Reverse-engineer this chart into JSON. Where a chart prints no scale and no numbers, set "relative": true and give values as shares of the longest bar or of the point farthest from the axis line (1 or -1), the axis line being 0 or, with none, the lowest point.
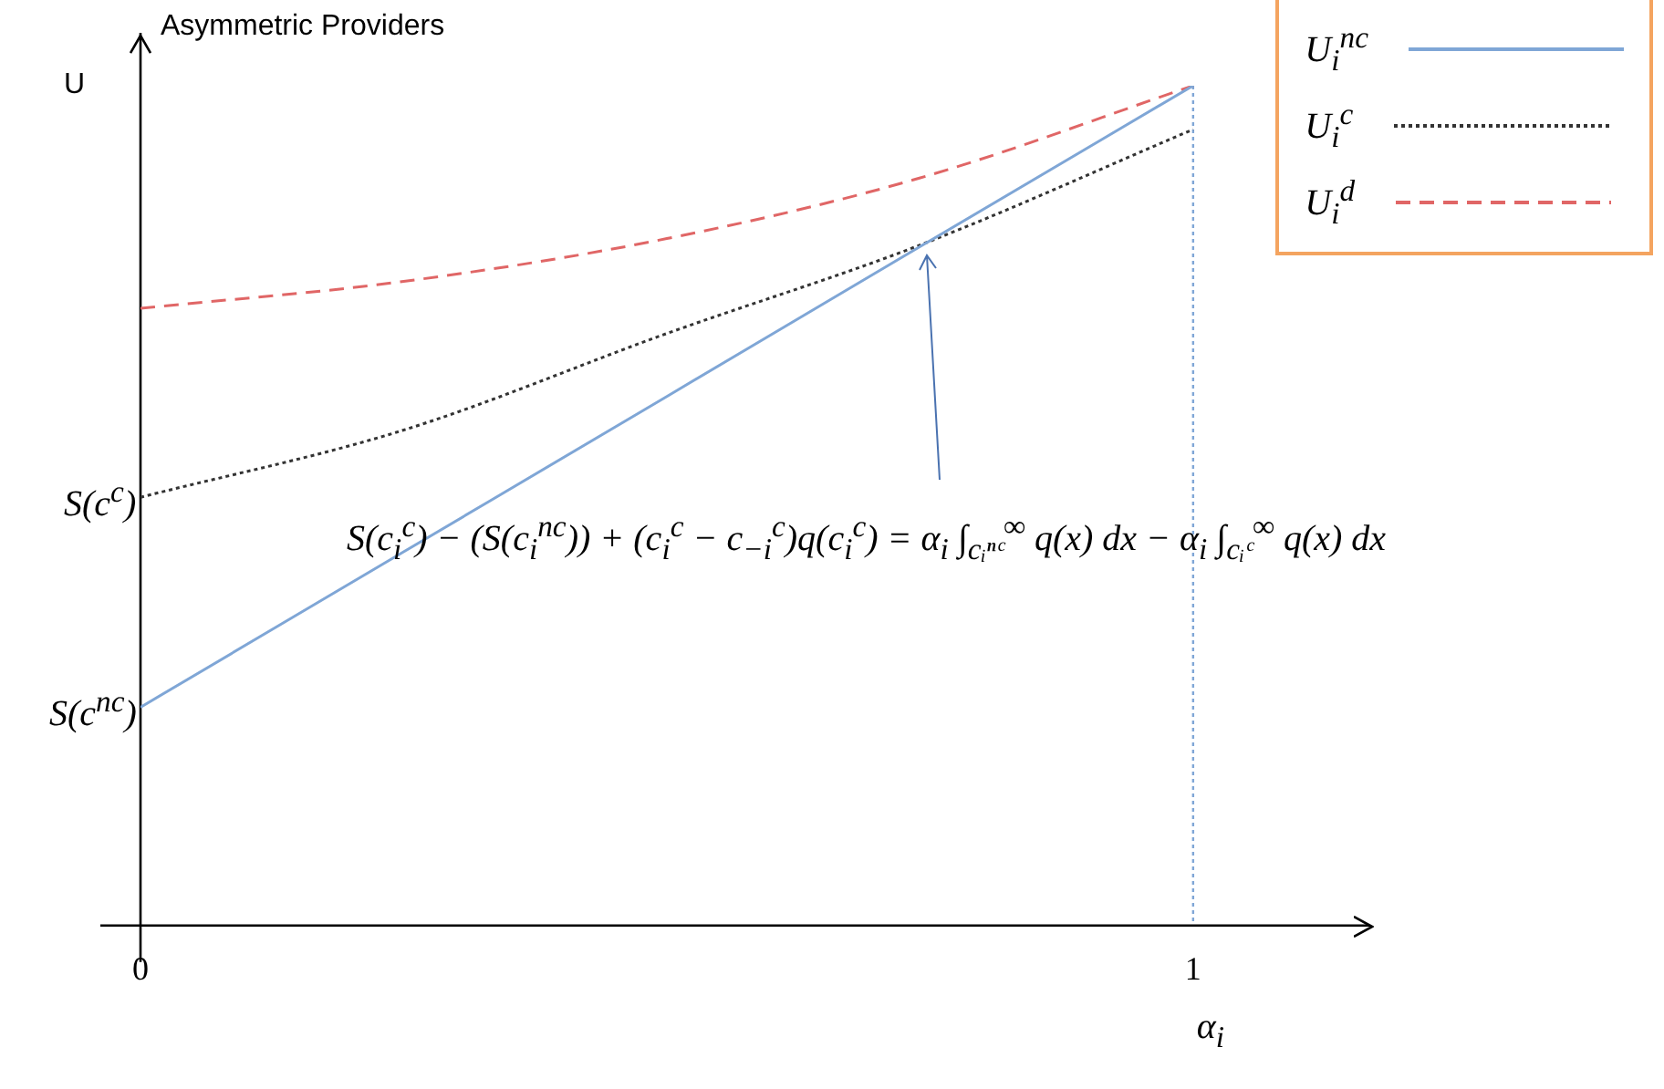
{
  "chart_data": {
    "type": "line",
    "title": "Asymmetric Providers",
    "xlabel": "α$_{i}$",
    "ylabel": "U",
    "relative": true,
    "x": [
      0,
      0.25,
      0.5,
      0.74,
      1
    ],
    "series": [
      {
        "name": "U$_{i}$$^{nc}$",
        "color": "#7fa6d6",
        "line_style": "solid",
        "values": [
          0.26,
          0.445,
          0.63,
          0.808,
          1
        ]
      },
      {
        "name": "U$_{i}$$^{c}$",
        "color": "#333333",
        "line_style": "dotted",
        "values": [
          0.51,
          0.59,
          0.705,
          0.81,
          0.948
        ]
      },
      {
        "name": "U$_{i}$$^{d}$",
        "color": "#e06666",
        "line_style": "dashed",
        "values": [
          0.735,
          0.767,
          0.818,
          0.89,
          1
        ]
      }
    ],
    "xlim": [
      0,
      1.17
    ],
    "xticks": [
      0,
      1
    ],
    "grid": false,
    "legend": "top right",
    "marker": "none",
    "ref_lines": [
      {
        "axis": "x",
        "value": 1,
        "color": "#7fa6d6",
        "line_style": "dotted"
      }
    ],
    "annotations": [
      {
        "text": "S(c$^{c}$)",
        "x": 0,
        "y": 0.51
      },
      {
        "text": "S(c$^{nc}$)",
        "x": 0,
        "y": 0.26
      },
      "S(c$_{i}$$^{c}$) − (S(c$_{i}$$^{nc}$)) + (c$_{i}$$^{c}$ − c$_{−i}$$^{c}$)q(c$_{i}$$^{c}$) = α$_{i}$ ∫$_{cᵢⁿᶜ}$$^{∞}$ q(x) dx − α$_{i}$ ∫$_{cᵢᶜ}$$^{∞}$ q(x) dx"
    ]
  }
}
